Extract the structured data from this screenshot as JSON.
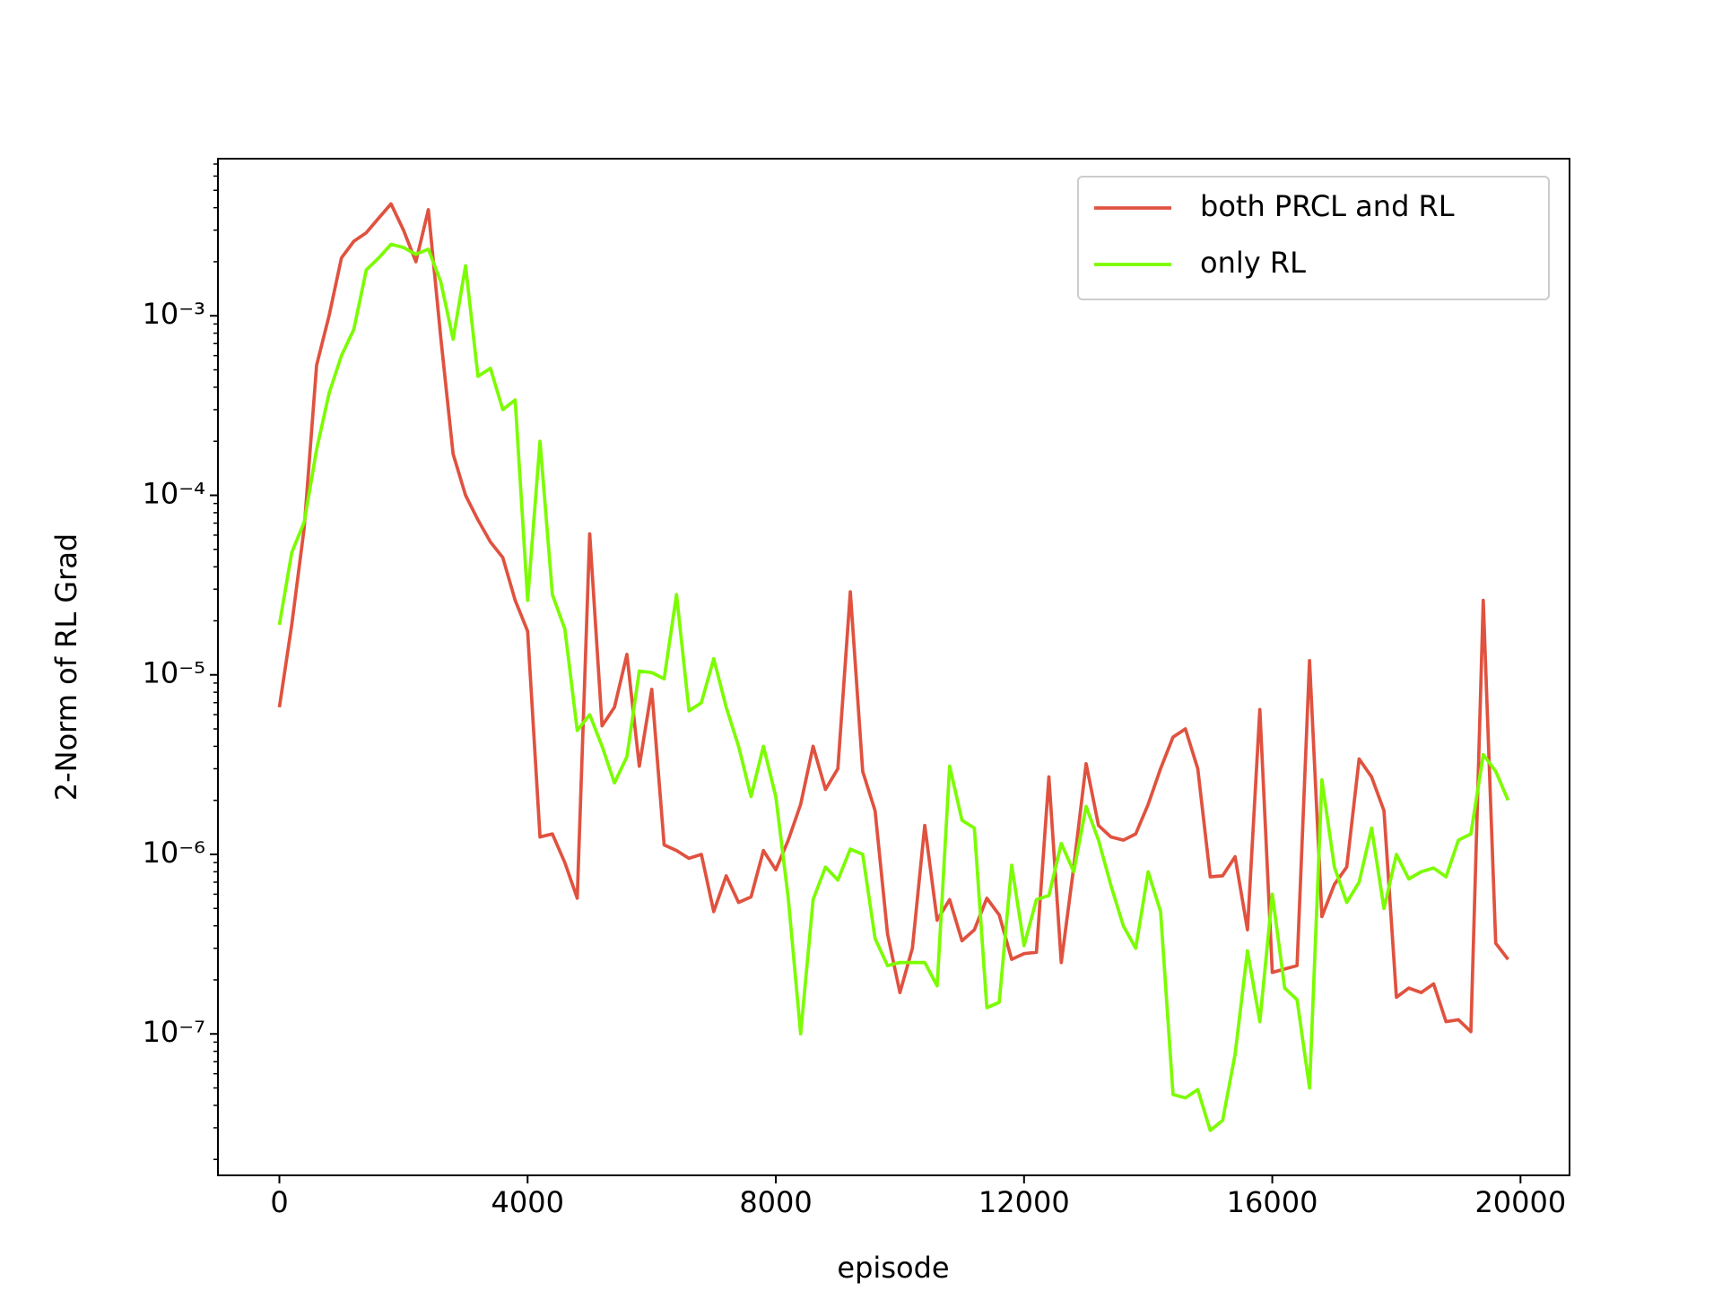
{
  "chart_data": {
    "type": "line",
    "xlabel": "episode",
    "ylabel": "2-Norm of RL Grad",
    "x": [
      0,
      200,
      400,
      600,
      800,
      1000,
      1200,
      1400,
      1600,
      1800,
      2000,
      2200,
      2400,
      2600,
      2800,
      3000,
      3200,
      3400,
      3600,
      3800,
      4000,
      4200,
      4400,
      4600,
      4800,
      5000,
      5200,
      5400,
      5600,
      5800,
      6000,
      6200,
      6400,
      6600,
      6800,
      7000,
      7200,
      7400,
      7600,
      7800,
      8000,
      8200,
      8400,
      8600,
      8800,
      9000,
      9200,
      9400,
      9600,
      9800,
      10000,
      10200,
      10400,
      10600,
      10800,
      11000,
      11200,
      11400,
      11600,
      11800,
      12000,
      12200,
      12400,
      12600,
      12800,
      13000,
      13200,
      13400,
      13600,
      13800,
      14000,
      14200,
      14400,
      14600,
      14800,
      15000,
      15200,
      15400,
      15600,
      15800,
      16000,
      16200,
      16400,
      16600,
      16800,
      17000,
      17200,
      17400,
      17600,
      17800,
      18000,
      18200,
      18400,
      18600,
      18800,
      19000,
      19200,
      19400,
      19600,
      19800
    ],
    "series": [
      {
        "name": "both PRCL and RL",
        "color": "#e0523f",
        "values": [
          6.6e-06,
          1.9e-05,
          6.6e-05,
          0.00053,
          0.001,
          0.0021,
          0.0026,
          0.0029,
          0.0035,
          0.0042,
          0.003,
          0.002,
          0.0039,
          0.00076,
          0.00017,
          0.0001,
          7.3e-05,
          5.5e-05,
          4.5e-05,
          2.6e-05,
          1.75e-05,
          1.25e-06,
          1.3e-06,
          9e-07,
          5.7e-07,
          6.1e-05,
          5.2e-06,
          6.6e-06,
          1.3e-05,
          3.1e-06,
          8.3e-06,
          1.13e-06,
          1.05e-06,
          9.5e-07,
          1e-06,
          4.8e-07,
          7.6e-07,
          5.4e-07,
          5.8e-07,
          1.05e-06,
          8.2e-07,
          1.2e-06,
          1.9e-06,
          4e-06,
          2.3e-06,
          3e-06,
          2.9e-05,
          2.9e-06,
          1.75e-06,
          3.6e-07,
          1.7e-07,
          3e-07,
          1.45e-06,
          4.3e-07,
          5.6e-07,
          3.3e-07,
          3.8e-07,
          5.7e-07,
          4.6e-07,
          2.6e-07,
          2.8e-07,
          2.85e-07,
          2.7e-06,
          2.5e-07,
          8.5e-07,
          3.2e-06,
          1.45e-06,
          1.25e-06,
          1.2e-06,
          1.3e-06,
          1.9e-06,
          3e-06,
          4.5e-06,
          5e-06,
          3e-06,
          7.5e-07,
          7.6e-07,
          9.7e-07,
          3.8e-07,
          6.4e-06,
          2.2e-07,
          2.3e-07,
          2.4e-07,
          1.2e-05,
          4.5e-07,
          6.8e-07,
          8.5e-07,
          3.4e-06,
          2.7e-06,
          1.75e-06,
          1.6e-07,
          1.8e-07,
          1.7e-07,
          1.9e-07,
          1.17e-07,
          1.2e-07,
          1.03e-07,
          2.6e-05,
          3.2e-07,
          2.6e-07
        ]
      },
      {
        "name": "only RL",
        "color": "#7cfc00",
        "values": [
          1.9e-05,
          4.8e-05,
          7.1e-05,
          0.00018,
          0.00037,
          0.0006,
          0.00084,
          0.0018,
          0.0021,
          0.0025,
          0.0024,
          0.0022,
          0.00235,
          0.00155,
          0.00074,
          0.0019,
          0.00046,
          0.00051,
          0.0003,
          0.00034,
          2.6e-05,
          0.0002,
          2.8e-05,
          1.8e-05,
          4.9e-06,
          6e-06,
          4e-06,
          2.5e-06,
          3.5e-06,
          1.05e-05,
          1.03e-05,
          9.5e-06,
          2.8e-05,
          6.3e-06,
          7e-06,
          1.23e-05,
          6.6e-06,
          4e-06,
          2.1e-06,
          4e-06,
          2.1e-06,
          5.7e-07,
          1e-07,
          5.6e-07,
          8.5e-07,
          7.2e-07,
          1.07e-06,
          1e-06,
          3.4e-07,
          2.4e-07,
          2.5e-07,
          2.5e-07,
          2.5e-07,
          1.85e-07,
          3.1e-06,
          1.55e-06,
          1.4e-06,
          1.4e-07,
          1.5e-07,
          8.7e-07,
          3.1e-07,
          5.6e-07,
          5.9e-07,
          1.15e-06,
          8e-07,
          1.85e-06,
          1.2e-06,
          6.7e-07,
          4e-07,
          3e-07,
          8e-07,
          4.8e-07,
          4.6e-08,
          4.4e-08,
          4.9e-08,
          2.9e-08,
          3.3e-08,
          7.7e-08,
          2.9e-07,
          1.17e-07,
          6e-07,
          1.8e-07,
          1.55e-07,
          5e-08,
          2.6e-06,
          8.5e-07,
          5.4e-07,
          7e-07,
          1.4e-06,
          5e-07,
          1e-06,
          7.3e-07,
          8e-07,
          8.4e-07,
          7.5e-07,
          1.2e-06,
          1.3e-06,
          3.6e-06,
          2.9e-06,
          2e-06
        ]
      }
    ],
    "xlim": [
      -990,
      20790
    ],
    "xticks": [
      0,
      4000,
      8000,
      12000,
      16000,
      20000
    ],
    "ylim": [
      1.63e-08,
      0.0075
    ],
    "ylog": true,
    "yticks": [
      {
        "value": 1e-07,
        "label": "10⁻⁷"
      },
      {
        "value": 1e-06,
        "label": "10⁻⁶"
      },
      {
        "value": 1e-05,
        "label": "10⁻⁵"
      },
      {
        "value": 0.0001,
        "label": "10⁻⁴"
      },
      {
        "value": 0.001,
        "label": "10⁻³"
      }
    ],
    "yminorticks": [
      2e-08,
      3e-08,
      4e-08,
      5e-08,
      6e-08,
      7e-08,
      8e-08,
      9e-08,
      2e-07,
      3e-07,
      4e-07,
      5e-07,
      6e-07,
      7e-07,
      8e-07,
      9e-07,
      2e-06,
      3e-06,
      4e-06,
      5e-06,
      6e-06,
      7e-06,
      8e-06,
      9e-06,
      2e-05,
      3e-05,
      4e-05,
      5e-05,
      6e-05,
      7e-05,
      8e-05,
      9e-05,
      0.0002,
      0.0003,
      0.0004,
      0.0005,
      0.0006,
      0.0007,
      0.0008,
      0.0009,
      0.002,
      0.003,
      0.004,
      0.005,
      0.006,
      0.007
    ],
    "legend": "upper right",
    "grid": false
  }
}
